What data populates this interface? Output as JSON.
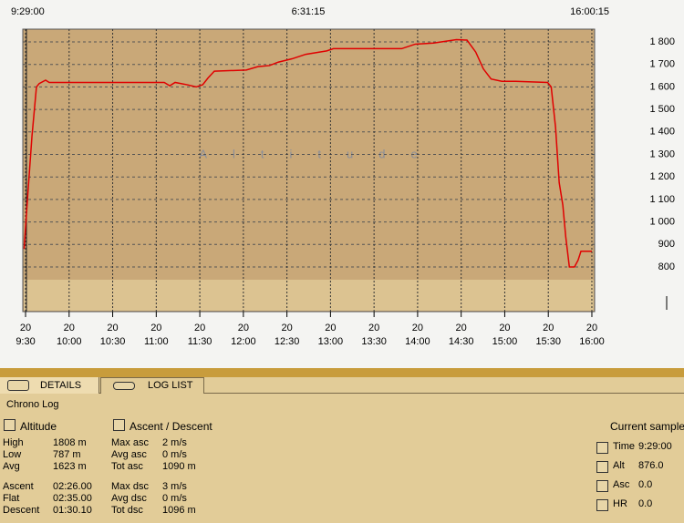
{
  "header": {
    "start": "9:29:00",
    "duration": "6:31:15",
    "end": "16:00:15"
  },
  "chart_data": {
    "type": "line",
    "watermark": "Altitude",
    "x": [
      569,
      571.3,
      574.4,
      577.5,
      579.4,
      583.8,
      586.3,
      590,
      665.5,
      669.3,
      673,
      681,
      687.5,
      692,
      695.7,
      700,
      722,
      730,
      738,
      744,
      753.5,
      763,
      777.4,
      782,
      829,
      838.4,
      851,
      866.7,
      874,
      880,
      885.3,
      890.6,
      898,
      907.5,
      929.5,
      932,
      935,
      937.5,
      940,
      942,
      944.5,
      948,
      950.5,
      952.5,
      955,
      960
    ],
    "series": [
      {
        "name": "Altitude",
        "color": "#e00000",
        "values": [
          880,
          1100,
          1380,
          1600,
          1615,
          1630,
          1620,
          1620,
          1620,
          1605,
          1620,
          1610,
          1600,
          1610,
          1640,
          1670,
          1675,
          1690,
          1695,
          1710,
          1725,
          1745,
          1760,
          1770,
          1770,
          1790,
          1795,
          1810,
          1808,
          1755,
          1680,
          1635,
          1625,
          1625,
          1620,
          1600,
          1420,
          1175,
          1075,
          935,
          800,
          800,
          830,
          870,
          870,
          870
        ]
      }
    ],
    "xlim": [
      568.1,
      961.9
    ],
    "ylim": [
      601.6,
      1856.7
    ],
    "xtick_day": "20",
    "xticks": [
      {
        "value": 570,
        "label": "9:30"
      },
      {
        "value": 600,
        "label": "10:00"
      },
      {
        "value": 630,
        "label": "10:30"
      },
      {
        "value": 660,
        "label": "11:00"
      },
      {
        "value": 690,
        "label": "11:30"
      },
      {
        "value": 720,
        "label": "12:00"
      },
      {
        "value": 750,
        "label": "12:30"
      },
      {
        "value": 780,
        "label": "13:00"
      },
      {
        "value": 810,
        "label": "13:30"
      },
      {
        "value": 840,
        "label": "14:00"
      },
      {
        "value": 870,
        "label": "14:30"
      },
      {
        "value": 900,
        "label": "15:00"
      },
      {
        "value": 930,
        "label": "15:30"
      },
      {
        "value": 960,
        "label": "16:00"
      }
    ],
    "yticks": [
      800,
      900,
      {
        "value": 1000,
        "label": "1 000"
      },
      {
        "value": 1100,
        "label": "1 100"
      },
      {
        "value": 1200,
        "label": "1 200"
      },
      {
        "value": 1300,
        "label": "1 300"
      },
      {
        "value": 1400,
        "label": "1 400"
      },
      {
        "value": 1500,
        "label": "1 500"
      },
      {
        "value": 1600,
        "label": "1 600"
      },
      {
        "value": 1700,
        "label": "1 700"
      },
      {
        "value": 1800,
        "label": "1 800"
      }
    ],
    "grid": true
  },
  "tabs": [
    "DETAILS",
    "LOG LIST"
  ],
  "section": "Chrono Log",
  "altitude": {
    "title": "Altitude",
    "rows": [
      [
        "High",
        "1808 m"
      ],
      [
        "Low",
        "787 m"
      ],
      [
        "Avg",
        "1623 m"
      ],
      [
        "Ascent",
        "02:26.00"
      ],
      [
        "Flat",
        "02:35.00"
      ],
      [
        "Descent",
        "01:30.10"
      ]
    ]
  },
  "ascent_descent": {
    "title": "Ascent / Descent",
    "rows": [
      [
        "Max asc",
        "2 m/s"
      ],
      [
        "Avg asc",
        "0 m/s"
      ],
      [
        "Tot asc",
        "1090 m"
      ],
      [
        "Max dsc",
        "3 m/s"
      ],
      [
        "Avg dsc",
        "0 m/s"
      ],
      [
        "Tot dsc",
        "1096 m"
      ]
    ]
  },
  "current_sample": {
    "title": "Current sample",
    "rows": [
      [
        "Time",
        "9:29:00"
      ],
      [
        "Alt",
        "876.0"
      ],
      [
        "Asc",
        "0.0"
      ],
      [
        "HR",
        "0.0"
      ]
    ]
  }
}
